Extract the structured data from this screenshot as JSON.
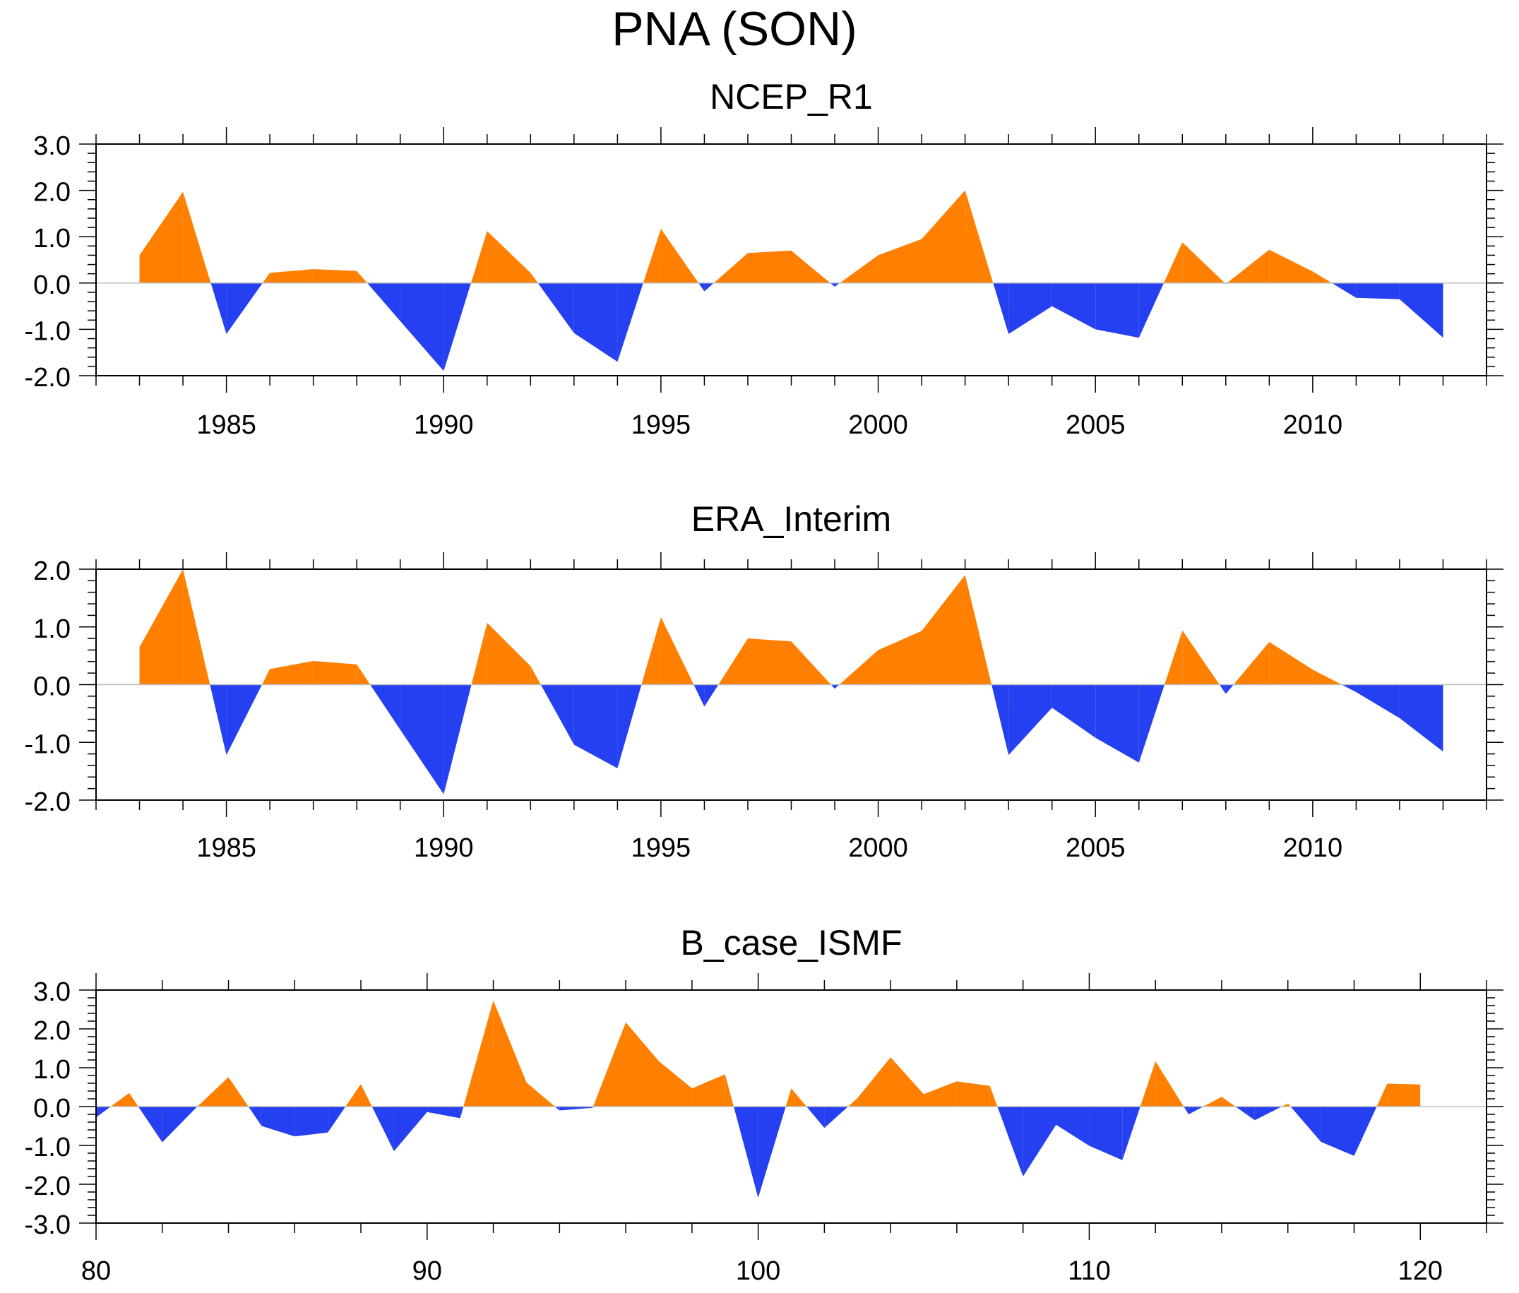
{
  "figure_title": "PNA (SON)",
  "colors": {
    "positive": "#ff8000",
    "negative": "#2540f0",
    "axis": "#000000",
    "zero_line": "#bdbdbd"
  },
  "chart_data": [
    {
      "type": "area",
      "title": "NCEP_R1",
      "xlabel": "",
      "ylabel": "",
      "xlim": [
        1982,
        2014
      ],
      "ylim": [
        -2.0,
        3.0
      ],
      "xticks": [
        1985,
        1990,
        1995,
        2000,
        2005,
        2010
      ],
      "xtick_labels": [
        "1985",
        "1990",
        "1995",
        "2000",
        "2005",
        "2010"
      ],
      "yticks": [
        -2.0,
        -1.0,
        0.0,
        1.0,
        2.0,
        3.0
      ],
      "ytick_labels": [
        "-2.0",
        "-1.0",
        "0.0",
        "1.0",
        "2.0",
        "3.0"
      ],
      "x": [
        1983,
        1984,
        1985,
        1986,
        1987,
        1988,
        1989,
        1990,
        1991,
        1992,
        1993,
        1994,
        1995,
        1996,
        1997,
        1998,
        1999,
        2000,
        2001,
        2002,
        2003,
        2004,
        2005,
        2006,
        2007,
        2008,
        2009,
        2010,
        2011,
        2012,
        2013
      ],
      "values": [
        0.6,
        1.97,
        -1.1,
        0.22,
        0.3,
        0.26,
        -0.82,
        -1.9,
        1.12,
        0.22,
        -1.08,
        -1.7,
        1.17,
        -0.18,
        0.65,
        0.7,
        -0.08,
        0.6,
        0.95,
        2.0,
        -1.1,
        -0.5,
        -1.0,
        -1.18,
        0.88,
        -0.02,
        0.72,
        0.25,
        -0.32,
        -0.35,
        -1.18
      ]
    },
    {
      "type": "area",
      "title": "ERA_Interim",
      "xlabel": "",
      "ylabel": "",
      "xlim": [
        1982,
        2014
      ],
      "ylim": [
        -2.0,
        2.0
      ],
      "xticks": [
        1985,
        1990,
        1995,
        2000,
        2005,
        2010
      ],
      "xtick_labels": [
        "1985",
        "1990",
        "1995",
        "2000",
        "2005",
        "2010"
      ],
      "yticks": [
        -2.0,
        -1.0,
        0.0,
        1.0,
        2.0
      ],
      "ytick_labels": [
        "-2.0",
        "-1.0",
        "0.0",
        "1.0",
        "2.0"
      ],
      "x": [
        1983,
        1984,
        1985,
        1986,
        1987,
        1988,
        1989,
        1990,
        1991,
        1992,
        1993,
        1994,
        1995,
        1996,
        1997,
        1998,
        1999,
        2000,
        2001,
        2002,
        2003,
        2004,
        2005,
        2006,
        2007,
        2008,
        2009,
        2010,
        2011,
        2012,
        2013
      ],
      "values": [
        0.65,
        2.0,
        -1.22,
        0.27,
        0.41,
        0.35,
        -0.78,
        -1.9,
        1.07,
        0.32,
        -1.04,
        -1.45,
        1.17,
        -0.38,
        0.8,
        0.75,
        -0.07,
        0.6,
        0.93,
        1.9,
        -1.22,
        -0.4,
        -0.92,
        -1.35,
        0.94,
        -0.16,
        0.74,
        0.26,
        -0.13,
        -0.58,
        -1.16
      ]
    },
    {
      "type": "area",
      "title": "B_case_ISMF",
      "xlabel": "",
      "ylabel": "",
      "xlim": [
        80,
        122
      ],
      "ylim": [
        -3.0,
        3.0
      ],
      "xticks": [
        80,
        90,
        100,
        110,
        120
      ],
      "xtick_labels": [
        "80",
        "90",
        "100",
        "110",
        "120"
      ],
      "yticks": [
        -3.0,
        -2.0,
        -1.0,
        0.0,
        1.0,
        2.0,
        3.0
      ],
      "ytick_labels": [
        "-3.0",
        "-2.0",
        "-1.0",
        "0.0",
        "1.0",
        "2.0",
        "3.0"
      ],
      "x": [
        80,
        81,
        82,
        83,
        84,
        85,
        86,
        87,
        88,
        89,
        90,
        91,
        92,
        93,
        94,
        95,
        96,
        97,
        98,
        99,
        100,
        101,
        102,
        103,
        104,
        105,
        106,
        107,
        108,
        109,
        110,
        111,
        112,
        113,
        114,
        115,
        116,
        117,
        118,
        119,
        120
      ],
      "values": [
        -0.28,
        0.35,
        -0.92,
        -0.05,
        0.76,
        -0.5,
        -0.77,
        -0.67,
        0.58,
        -1.15,
        -0.14,
        -0.3,
        2.73,
        0.62,
        -0.1,
        -0.03,
        2.17,
        1.17,
        0.47,
        0.83,
        -2.35,
        0.47,
        -0.55,
        0.22,
        1.27,
        0.32,
        0.65,
        0.53,
        -1.8,
        -0.47,
        -1.01,
        -1.38,
        1.17,
        -0.2,
        0.25,
        -0.35,
        0.08,
        -0.91,
        -1.27,
        0.59,
        0.57
      ]
    }
  ]
}
